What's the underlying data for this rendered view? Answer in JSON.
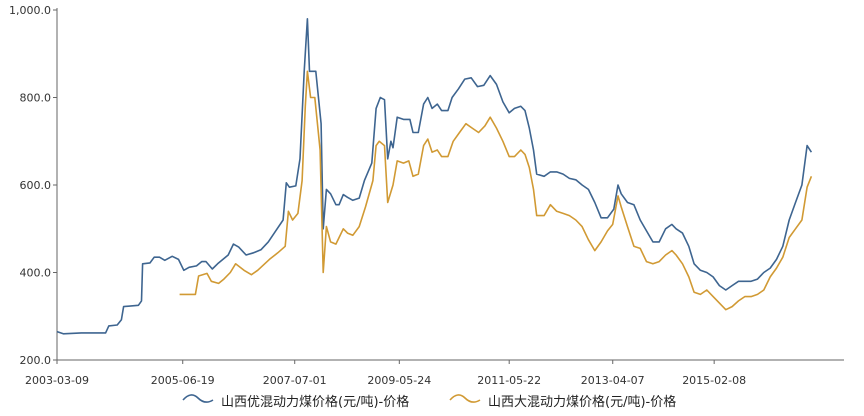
{
  "chart_data": {
    "type": "line",
    "title": "",
    "xlabel": "",
    "ylabel": "",
    "ylim": [
      200,
      1000
    ],
    "grid": false,
    "legend_position": "bottom",
    "y_ticks": [
      {
        "value": 200,
        "label": "200.0"
      },
      {
        "value": 400,
        "label": "400.0"
      },
      {
        "value": 600,
        "label": "600.0"
      },
      {
        "value": 800,
        "label": "800.0"
      },
      {
        "value": 1000,
        "label": "1,000.0"
      }
    ],
    "x_range": [
      "2003-03-09",
      "2017-06-04"
    ],
    "x_ticks": [
      "2003-03-09",
      "2005-06-19",
      "2007-07-01",
      "2009-05-24",
      "2011-05-22",
      "2013-04-07",
      "2015-02-08"
    ],
    "series": [
      {
        "name": "山西优混动力煤价格(元/吨)-价格",
        "color": "#3e6590",
        "points": [
          [
            "2003-03-09",
            265
          ],
          [
            "2003-04-20",
            260
          ],
          [
            "2003-08-17",
            262
          ],
          [
            "2004-01-25",
            262
          ],
          [
            "2004-02-15",
            278
          ],
          [
            "2004-04-11",
            280
          ],
          [
            "2004-05-09",
            292
          ],
          [
            "2004-05-23",
            322
          ],
          [
            "2004-08-29",
            325
          ],
          [
            "2004-09-19",
            335
          ],
          [
            "2004-09-26",
            420
          ],
          [
            "2004-11-14",
            422
          ],
          [
            "2004-12-12",
            435
          ],
          [
            "2005-01-16",
            435
          ],
          [
            "2005-02-20",
            428
          ],
          [
            "2005-04-10",
            437
          ],
          [
            "2005-05-22",
            430
          ],
          [
            "2005-06-26",
            405
          ],
          [
            "2005-07-31",
            412
          ],
          [
            "2005-09-18",
            415
          ],
          [
            "2005-10-23",
            425
          ],
          [
            "2005-11-20",
            425
          ],
          [
            "2006-01-01",
            408
          ],
          [
            "2006-02-05",
            420
          ],
          [
            "2006-04-16",
            440
          ],
          [
            "2006-05-21",
            465
          ],
          [
            "2006-06-25",
            458
          ],
          [
            "2006-08-13",
            440
          ],
          [
            "2006-10-01",
            445
          ],
          [
            "2006-11-19",
            452
          ],
          [
            "2007-01-07",
            470
          ],
          [
            "2007-02-25",
            495
          ],
          [
            "2007-04-15",
            520
          ],
          [
            "2007-05-06",
            605
          ],
          [
            "2007-05-27",
            595
          ],
          [
            "2007-07-08",
            598
          ],
          [
            "2007-08-05",
            660
          ],
          [
            "2007-09-02",
            860
          ],
          [
            "2007-09-23",
            980
          ],
          [
            "2007-10-07",
            860
          ],
          [
            "2007-11-18",
            860
          ],
          [
            "2007-12-23",
            740
          ],
          [
            "2008-01-06",
            500
          ],
          [
            "2008-01-27",
            590
          ],
          [
            "2008-02-24",
            580
          ],
          [
            "2008-03-30",
            555
          ],
          [
            "2008-04-20",
            555
          ],
          [
            "2008-05-18",
            578
          ],
          [
            "2008-06-15",
            572
          ],
          [
            "2008-07-20",
            565
          ],
          [
            "2008-08-31",
            570
          ],
          [
            "2008-10-05",
            610
          ],
          [
            "2008-11-23",
            650
          ],
          [
            "2008-12-21",
            775
          ],
          [
            "2009-01-18",
            800
          ],
          [
            "2009-02-15",
            795
          ],
          [
            "2009-03-08",
            660
          ],
          [
            "2009-03-29",
            700
          ],
          [
            "2009-04-12",
            685
          ],
          [
            "2009-05-10",
            755
          ],
          [
            "2009-06-21",
            750
          ],
          [
            "2009-08-02",
            750
          ],
          [
            "2009-08-23",
            720
          ],
          [
            "2009-09-27",
            720
          ],
          [
            "2009-11-01",
            785
          ],
          [
            "2009-11-29",
            800
          ],
          [
            "2009-12-27",
            775
          ],
          [
            "2010-01-31",
            785
          ],
          [
            "2010-02-28",
            770
          ],
          [
            "2010-04-11",
            770
          ],
          [
            "2010-05-09",
            800
          ],
          [
            "2010-06-20",
            820
          ],
          [
            "2010-08-01",
            842
          ],
          [
            "2010-09-12",
            845
          ],
          [
            "2010-10-24",
            825
          ],
          [
            "2010-12-05",
            828
          ],
          [
            "2011-01-16",
            850
          ],
          [
            "2011-02-27",
            830
          ],
          [
            "2011-04-10",
            790
          ],
          [
            "2011-05-22",
            765
          ],
          [
            "2011-06-26",
            775
          ],
          [
            "2011-08-07",
            780
          ],
          [
            "2011-09-04",
            770
          ],
          [
            "2011-10-02",
            730
          ],
          [
            "2011-10-30",
            680
          ],
          [
            "2011-11-20",
            625
          ],
          [
            "2012-01-08",
            620
          ],
          [
            "2012-02-19",
            630
          ],
          [
            "2012-04-01",
            630
          ],
          [
            "2012-05-13",
            625
          ],
          [
            "2012-06-24",
            615
          ],
          [
            "2012-08-05",
            612
          ],
          [
            "2012-09-16",
            600
          ],
          [
            "2012-10-28",
            590
          ],
          [
            "2012-12-09",
            560
          ],
          [
            "2013-01-20",
            525
          ],
          [
            "2013-03-03",
            525
          ],
          [
            "2013-04-14",
            545
          ],
          [
            "2013-05-12",
            600
          ],
          [
            "2013-06-02",
            580
          ],
          [
            "2013-07-14",
            560
          ],
          [
            "2013-08-25",
            555
          ],
          [
            "2013-10-06",
            520
          ],
          [
            "2013-11-17",
            495
          ],
          [
            "2013-12-29",
            470
          ],
          [
            "2014-02-09",
            470
          ],
          [
            "2014-03-23",
            500
          ],
          [
            "2014-05-04",
            510
          ],
          [
            "2014-06-01",
            500
          ],
          [
            "2014-07-13",
            490
          ],
          [
            "2014-08-24",
            460
          ],
          [
            "2014-09-28",
            420
          ],
          [
            "2014-11-09",
            405
          ],
          [
            "2014-12-21",
            400
          ],
          [
            "2015-02-01",
            390
          ],
          [
            "2015-03-15",
            370
          ],
          [
            "2015-04-26",
            360
          ],
          [
            "2015-06-07",
            370
          ],
          [
            "2015-07-19",
            380
          ],
          [
            "2015-08-30",
            380
          ],
          [
            "2015-10-11",
            380
          ],
          [
            "2015-11-22",
            385
          ],
          [
            "2016-01-03",
            400
          ],
          [
            "2016-02-14",
            410
          ],
          [
            "2016-03-27",
            430
          ],
          [
            "2016-05-08",
            460
          ],
          [
            "2016-06-19",
            520
          ],
          [
            "2016-07-31",
            560
          ],
          [
            "2016-09-11",
            600
          ],
          [
            "2016-10-16",
            690
          ],
          [
            "2016-11-13",
            675
          ]
        ]
      },
      {
        "name": "山西大混动力煤价格(元/吨)-价格",
        "color": "#d19a34",
        "points": [
          [
            "2005-05-29",
            350
          ],
          [
            "2005-09-11",
            350
          ],
          [
            "2005-10-02",
            392
          ],
          [
            "2005-11-27",
            398
          ],
          [
            "2005-12-25",
            380
          ],
          [
            "2006-02-12",
            375
          ],
          [
            "2006-03-19",
            385
          ],
          [
            "2006-04-30",
            400
          ],
          [
            "2006-06-04",
            420
          ],
          [
            "2006-07-30",
            405
          ],
          [
            "2006-09-17",
            395
          ],
          [
            "2006-10-29",
            405
          ],
          [
            "2007-01-14",
            430
          ],
          [
            "2007-03-11",
            445
          ],
          [
            "2007-04-29",
            460
          ],
          [
            "2007-05-20",
            540
          ],
          [
            "2007-06-17",
            520
          ],
          [
            "2007-07-22",
            535
          ],
          [
            "2007-08-19",
            610
          ],
          [
            "2007-09-09",
            780
          ],
          [
            "2007-09-23",
            860
          ],
          [
            "2007-10-14",
            800
          ],
          [
            "2007-11-11",
            800
          ],
          [
            "2007-12-16",
            680
          ],
          [
            "2008-01-06",
            400
          ],
          [
            "2008-01-27",
            505
          ],
          [
            "2008-02-24",
            470
          ],
          [
            "2008-03-30",
            465
          ],
          [
            "2008-04-20",
            480
          ],
          [
            "2008-05-18",
            500
          ],
          [
            "2008-06-15",
            490
          ],
          [
            "2008-07-20",
            485
          ],
          [
            "2008-08-31",
            505
          ],
          [
            "2008-10-12",
            550
          ],
          [
            "2008-11-30",
            610
          ],
          [
            "2008-12-21",
            690
          ],
          [
            "2009-01-11",
            700
          ],
          [
            "2009-02-15",
            690
          ],
          [
            "2009-03-08",
            560
          ],
          [
            "2009-04-12",
            600
          ],
          [
            "2009-05-10",
            655
          ],
          [
            "2009-06-21",
            650
          ],
          [
            "2009-07-26",
            655
          ],
          [
            "2009-08-23",
            620
          ],
          [
            "2009-09-27",
            625
          ],
          [
            "2009-11-01",
            690
          ],
          [
            "2009-11-29",
            705
          ],
          [
            "2009-12-27",
            675
          ],
          [
            "2010-01-31",
            680
          ],
          [
            "2010-02-28",
            665
          ],
          [
            "2010-04-11",
            665
          ],
          [
            "2010-05-16",
            700
          ],
          [
            "2010-06-27",
            720
          ],
          [
            "2010-08-08",
            740
          ],
          [
            "2010-09-19",
            730
          ],
          [
            "2010-10-31",
            720
          ],
          [
            "2010-12-12",
            735
          ],
          [
            "2011-01-16",
            755
          ],
          [
            "2011-02-27",
            730
          ],
          [
            "2011-04-10",
            700
          ],
          [
            "2011-05-22",
            665
          ],
          [
            "2011-06-26",
            665
          ],
          [
            "2011-08-07",
            680
          ],
          [
            "2011-09-04",
            670
          ],
          [
            "2011-10-02",
            640
          ],
          [
            "2011-10-30",
            590
          ],
          [
            "2011-11-20",
            530
          ],
          [
            "2012-01-08",
            530
          ],
          [
            "2012-02-19",
            555
          ],
          [
            "2012-04-01",
            540
          ],
          [
            "2012-05-13",
            535
          ],
          [
            "2012-06-24",
            530
          ],
          [
            "2012-08-05",
            520
          ],
          [
            "2012-09-16",
            505
          ],
          [
            "2012-10-28",
            475
          ],
          [
            "2012-12-09",
            450
          ],
          [
            "2013-01-20",
            470
          ],
          [
            "2013-03-03",
            495
          ],
          [
            "2013-04-07",
            510
          ],
          [
            "2013-05-12",
            575
          ],
          [
            "2013-06-02",
            550
          ],
          [
            "2013-07-14",
            505
          ],
          [
            "2013-08-25",
            460
          ],
          [
            "2013-10-06",
            455
          ],
          [
            "2013-11-17",
            425
          ],
          [
            "2013-12-29",
            420
          ],
          [
            "2014-02-09",
            425
          ],
          [
            "2014-03-23",
            440
          ],
          [
            "2014-05-04",
            450
          ],
          [
            "2014-06-01",
            440
          ],
          [
            "2014-07-13",
            420
          ],
          [
            "2014-08-24",
            390
          ],
          [
            "2014-09-28",
            355
          ],
          [
            "2014-11-09",
            350
          ],
          [
            "2014-12-21",
            360
          ],
          [
            "2015-02-01",
            345
          ],
          [
            "2015-03-15",
            330
          ],
          [
            "2015-04-26",
            315
          ],
          [
            "2015-06-07",
            322
          ],
          [
            "2015-07-19",
            335
          ],
          [
            "2015-08-30",
            345
          ],
          [
            "2015-10-11",
            345
          ],
          [
            "2015-11-22",
            350
          ],
          [
            "2016-01-03",
            360
          ],
          [
            "2016-02-14",
            390
          ],
          [
            "2016-03-27",
            410
          ],
          [
            "2016-05-08",
            435
          ],
          [
            "2016-06-19",
            480
          ],
          [
            "2016-07-31",
            500
          ],
          [
            "2016-09-11",
            520
          ],
          [
            "2016-10-16",
            595
          ],
          [
            "2016-11-13",
            620
          ]
        ]
      }
    ]
  }
}
